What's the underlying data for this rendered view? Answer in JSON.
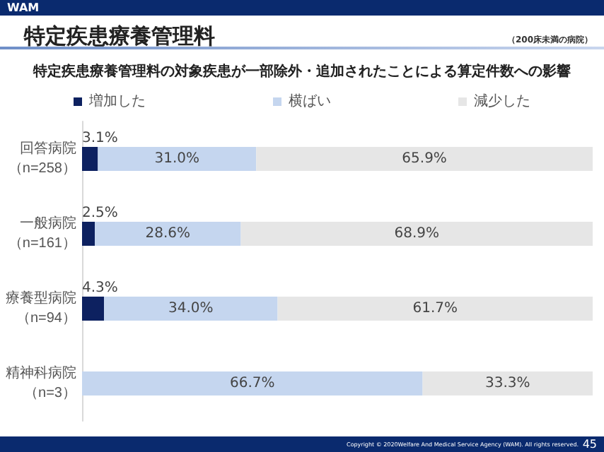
{
  "chart_data": {
    "type": "bar",
    "orientation": "horizontal",
    "stacked": true,
    "title": "特定疾患療養管理料",
    "subtitle": "特定疾患療養管理料の対象疾患が一部除外・追加されたことによる算定件数への影響",
    "annotations": [
      "WAM",
      "（200床未満の病院）",
      "Copyright © 2020Welfare And Medical Service Agency (WAM). All rights reserved.",
      "45"
    ],
    "categories": [
      "回答病院（n=258）",
      "一般病院（n=161）",
      "療養型病院（n=94）",
      "精神科病院（n=3）"
    ],
    "series": [
      {
        "name": "増加した",
        "color": "#0d2160",
        "values": [
          3.1,
          2.5,
          4.3,
          0
        ],
        "value_labels": [
          "3.1%",
          "2.5%",
          "4.3%",
          null
        ]
      },
      {
        "name": "横ばい",
        "color": "#c5d6ef",
        "values": [
          31.0,
          28.6,
          34.0,
          66.7
        ],
        "value_labels": [
          "31.0%",
          "28.6%",
          "34.0%",
          "66.7%"
        ]
      },
      {
        "name": "減少した",
        "color": "#e6e6e6",
        "values": [
          65.9,
          68.9,
          61.7,
          33.3
        ],
        "value_labels": [
          "65.9%",
          "68.9%",
          "61.7%",
          "33.3%"
        ]
      }
    ],
    "xlim": [
      0,
      100
    ],
    "tick_labels": "y",
    "grid": false,
    "legend": "top"
  }
}
